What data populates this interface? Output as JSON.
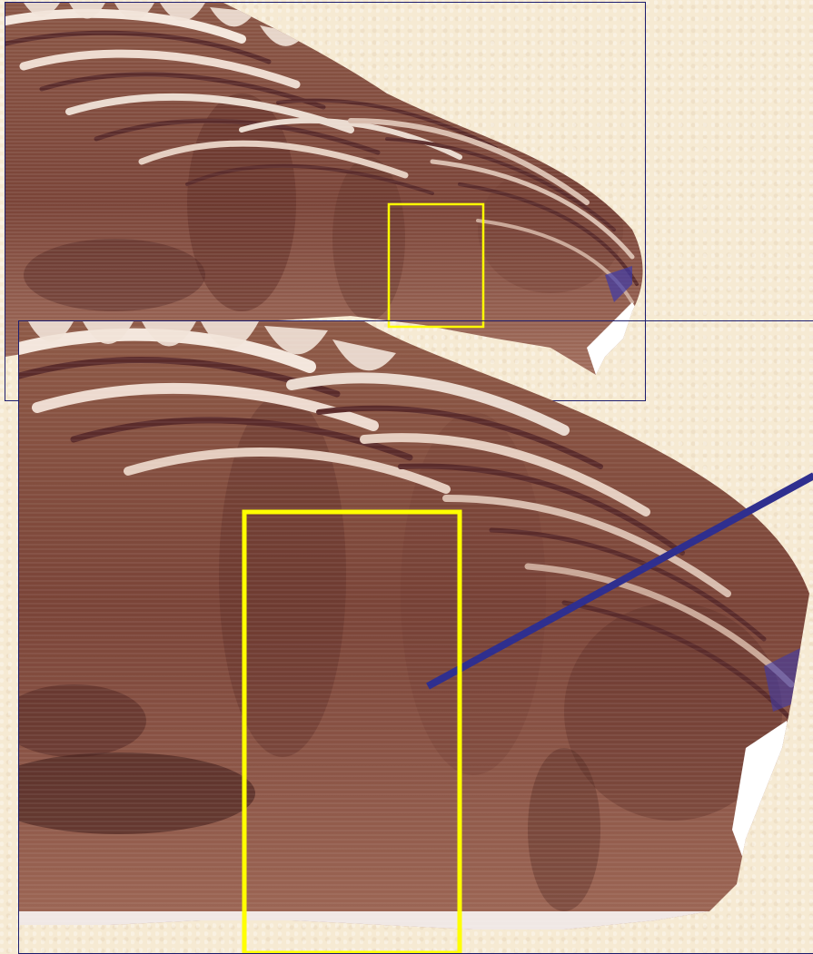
{
  "figure": {
    "background_color": "#f6ead3",
    "frame_color": "#1d1d6e",
    "highlight_color": "#ffff00",
    "pointer_color": "#2f2f8f",
    "shell_colors": [
      "#7a4536",
      "#a26a55",
      "#e7d5c8",
      "#5e2d27"
    ],
    "panels": [
      {
        "name": "overview",
        "content": "shell-section"
      },
      {
        "name": "magnified-view",
        "content": "shell-section"
      }
    ]
  }
}
